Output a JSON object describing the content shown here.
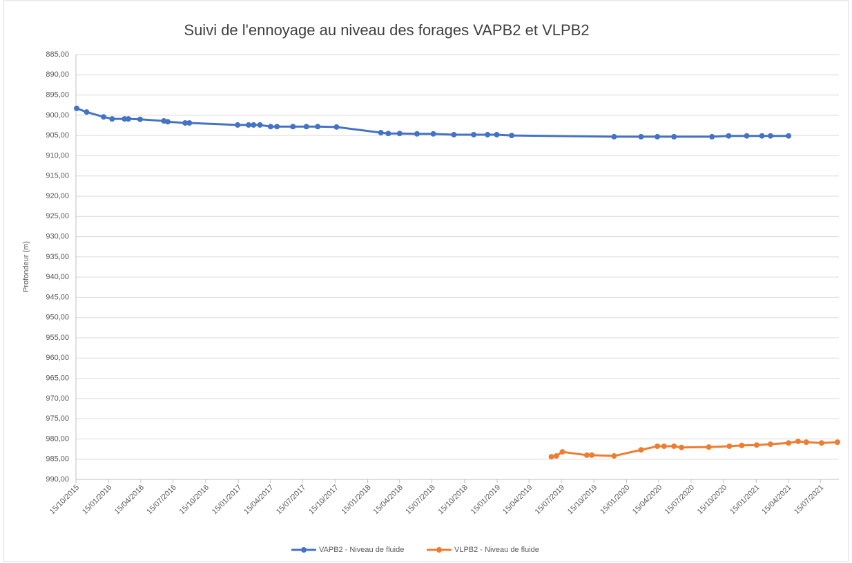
{
  "chart_data": {
    "type": "line",
    "title": "Suivi de l'ennoyage au niveau des forages VAPB2 et VLPB2",
    "y_label": "Profondeur (m)",
    "y_reversed": true,
    "grid": true,
    "legend": "bottom",
    "xlim": [
      "2015-10-15",
      "2021-09-05"
    ],
    "xticks": [
      {
        "value": "2015-10-15",
        "label": "15/10/2015"
      },
      {
        "value": "2016-01-15",
        "label": "15/01/2016"
      },
      {
        "value": "2016-04-15",
        "label": "15/04/2016"
      },
      {
        "value": "2016-07-15",
        "label": "15/07/2016"
      },
      {
        "value": "2016-10-15",
        "label": "15/10/2016"
      },
      {
        "value": "2017-01-15",
        "label": "15/01/2017"
      },
      {
        "value": "2017-04-15",
        "label": "15/04/2017"
      },
      {
        "value": "2017-07-15",
        "label": "15/07/2017"
      },
      {
        "value": "2017-10-15",
        "label": "15/10/2017"
      },
      {
        "value": "2018-01-15",
        "label": "15/01/2018"
      },
      {
        "value": "2018-04-15",
        "label": "15/04/2018"
      },
      {
        "value": "2018-07-15",
        "label": "15/07/2018"
      },
      {
        "value": "2018-10-15",
        "label": "15/10/2018"
      },
      {
        "value": "2019-01-15",
        "label": "15/01/2019"
      },
      {
        "value": "2019-04-15",
        "label": "15/04/2019"
      },
      {
        "value": "2019-07-15",
        "label": "15/07/2019"
      },
      {
        "value": "2019-10-15",
        "label": "15/10/2019"
      },
      {
        "value": "2020-01-15",
        "label": "15/01/2020"
      },
      {
        "value": "2020-04-15",
        "label": "15/04/2020"
      },
      {
        "value": "2020-07-15",
        "label": "15/07/2020"
      },
      {
        "value": "2020-10-15",
        "label": "15/10/2020"
      },
      {
        "value": "2021-01-15",
        "label": "15/01/2021"
      },
      {
        "value": "2021-04-15",
        "label": "15/04/2021"
      },
      {
        "value": "2021-07-15",
        "label": "15/07/2021"
      }
    ],
    "ylim": [
      885,
      990
    ],
    "yticks": [
      {
        "value": 885,
        "label": "885,00"
      },
      {
        "value": 890,
        "label": "890,00"
      },
      {
        "value": 895,
        "label": "895,00"
      },
      {
        "value": 900,
        "label": "900,00"
      },
      {
        "value": 905,
        "label": "905,00"
      },
      {
        "value": 910,
        "label": "910,00"
      },
      {
        "value": 915,
        "label": "915,00"
      },
      {
        "value": 920,
        "label": "920,00"
      },
      {
        "value": 925,
        "label": "925,00"
      },
      {
        "value": 930,
        "label": "930,00"
      },
      {
        "value": 935,
        "label": "935,00"
      },
      {
        "value": 940,
        "label": "940,00"
      },
      {
        "value": 945,
        "label": "945,00"
      },
      {
        "value": 950,
        "label": "950,00"
      },
      {
        "value": 955,
        "label": "955,00"
      },
      {
        "value": 960,
        "label": "960,00"
      },
      {
        "value": 965,
        "label": "965,00"
      },
      {
        "value": 970,
        "label": "970,00"
      },
      {
        "value": 975,
        "label": "975,00"
      },
      {
        "value": 980,
        "label": "980,00"
      },
      {
        "value": 985,
        "label": "985,00"
      },
      {
        "value": 990,
        "label": "990,00"
      }
    ],
    "series": [
      {
        "name": "VAPB2 - Niveau de fluide",
        "color": "#4472c4",
        "x": [
          "2015-10-17",
          "2015-11-14",
          "2016-01-01",
          "2016-01-25",
          "2016-02-29",
          "2016-03-11",
          "2016-04-13",
          "2016-06-19",
          "2016-06-30",
          "2016-08-18",
          "2016-08-30",
          "2017-01-13",
          "2017-02-13",
          "2017-02-27",
          "2017-03-17",
          "2017-04-16",
          "2017-05-04",
          "2017-06-18",
          "2017-07-26",
          "2017-08-27",
          "2017-10-19",
          "2018-02-21",
          "2018-03-14",
          "2018-04-15",
          "2018-06-03",
          "2018-07-19",
          "2018-09-15",
          "2018-11-10",
          "2018-12-19",
          "2019-01-14",
          "2019-02-25",
          "2019-12-11",
          "2020-02-25",
          "2020-04-11",
          "2020-05-28",
          "2020-09-12",
          "2020-10-29",
          "2020-12-19",
          "2021-01-31",
          "2021-02-24",
          "2021-04-16"
        ],
        "values": [
          898.3,
          899.2,
          900.4,
          900.9,
          900.9,
          900.9,
          901.0,
          901.4,
          901.6,
          901.9,
          901.9,
          902.4,
          902.4,
          902.4,
          902.4,
          902.8,
          902.8,
          902.8,
          902.8,
          902.8,
          902.9,
          904.3,
          904.5,
          904.5,
          904.6,
          904.6,
          904.8,
          904.8,
          904.8,
          904.8,
          905.0,
          905.3,
          905.3,
          905.3,
          905.3,
          905.3,
          905.1,
          905.1,
          905.1,
          905.1,
          905.1
        ]
      },
      {
        "name": "VLPB2 - Niveau de fluide",
        "color": "#ed7d31",
        "x": [
          "2019-06-17",
          "2019-07-01",
          "2019-07-18",
          "2019-09-25",
          "2019-10-09",
          "2019-12-11",
          "2020-02-25",
          "2020-04-11",
          "2020-04-30",
          "2020-05-28",
          "2020-06-18",
          "2020-09-03",
          "2020-10-31",
          "2020-12-05",
          "2021-01-16",
          "2021-02-24",
          "2021-04-16",
          "2021-05-13",
          "2021-06-05",
          "2021-07-18",
          "2021-09-01"
        ],
        "values": [
          984.4,
          984.2,
          983.2,
          984.0,
          984.0,
          984.2,
          982.7,
          981.8,
          981.8,
          981.8,
          982.1,
          982.0,
          981.8,
          981.6,
          981.5,
          981.3,
          981.0,
          980.6,
          980.8,
          981.0,
          980.8
        ]
      }
    ]
  }
}
